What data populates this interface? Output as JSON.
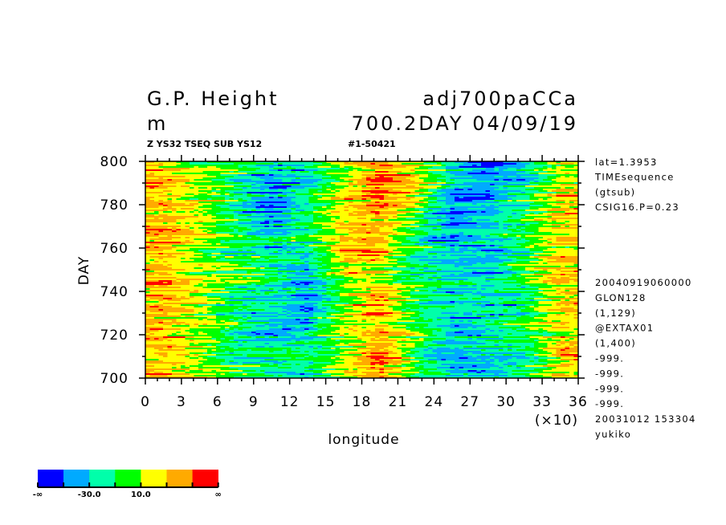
{
  "header": {
    "title_left": "G.P. Height",
    "title_right": "adj700paCCa",
    "unit": "m",
    "subtitle_right": "700.2DAY 04/09/19",
    "small_left": "Z YS32 TSEQ SUB YS12",
    "small_right": "#1-50421"
  },
  "info_lines_top": [
    "lat=1.3953",
    "TIMEsequence",
    "(gtsub)",
    "CSIG16.P=0.23"
  ],
  "info_lines_bottom": [
    "20040919060000",
    "GLON128",
    "(1,129)",
    "@EXTAX01",
    "(1,400)",
    "-999.",
    "-999.",
    "-999.",
    "-999.",
    "20031012 153304",
    "yukiko"
  ],
  "chart_data": {
    "type": "heatmap",
    "title": "G.P. Height",
    "xlabel": "longitude",
    "xscale_note": "(×10)",
    "ylabel": "DAY",
    "xlim": [
      0,
      360
    ],
    "ylim": [
      700,
      800
    ],
    "xtick_labels": [
      "0",
      "3",
      "6",
      "9",
      "12",
      "15",
      "18",
      "21",
      "24",
      "27",
      "30",
      "33",
      "36"
    ],
    "ytick_labels": [
      "700",
      "720",
      "740",
      "760",
      "780",
      "800"
    ],
    "grid": false,
    "lon_centers": [
      15,
      45,
      75,
      105,
      135,
      165,
      195,
      225,
      255,
      285,
      315,
      345
    ],
    "day_centers": [
      795,
      785,
      775,
      765,
      755,
      745,
      735,
      725,
      715,
      705
    ],
    "values_m": [
      [
        35,
        10,
        -5,
        -25,
        -30,
        5,
        45,
        20,
        -20,
        -45,
        -30,
        15
      ],
      [
        40,
        15,
        -10,
        -40,
        -25,
        20,
        50,
        15,
        -35,
        -40,
        -15,
        35
      ],
      [
        35,
        15,
        -20,
        -50,
        -15,
        25,
        40,
        5,
        -40,
        -35,
        -10,
        25
      ],
      [
        40,
        20,
        -5,
        -30,
        -5,
        30,
        30,
        -10,
        -40,
        -25,
        0,
        20
      ],
      [
        30,
        15,
        -10,
        -25,
        -30,
        20,
        30,
        -10,
        -30,
        -30,
        -5,
        20
      ],
      [
        35,
        15,
        -5,
        -15,
        -35,
        10,
        25,
        -5,
        -25,
        -25,
        -10,
        25
      ],
      [
        30,
        10,
        -10,
        -30,
        -40,
        10,
        35,
        -5,
        -25,
        -35,
        -10,
        25
      ],
      [
        30,
        15,
        -10,
        -25,
        -30,
        15,
        30,
        -10,
        -40,
        -20,
        -5,
        30
      ],
      [
        35,
        10,
        -15,
        -25,
        -20,
        10,
        35,
        0,
        -30,
        -25,
        -10,
        30
      ],
      [
        35,
        15,
        -5,
        -20,
        -25,
        15,
        45,
        0,
        -30,
        -35,
        -15,
        20
      ]
    ],
    "levels": [
      -50,
      -30,
      -10,
      10,
      30,
      50
    ],
    "colors": [
      "#0000ff",
      "#00aaff",
      "#00ffaa",
      "#00ff00",
      "#ffff00",
      "#ffaa00",
      "#ff0000"
    ],
    "colorbar_labels": [
      "-∞",
      "-30.0",
      "10.0",
      "∞"
    ]
  }
}
